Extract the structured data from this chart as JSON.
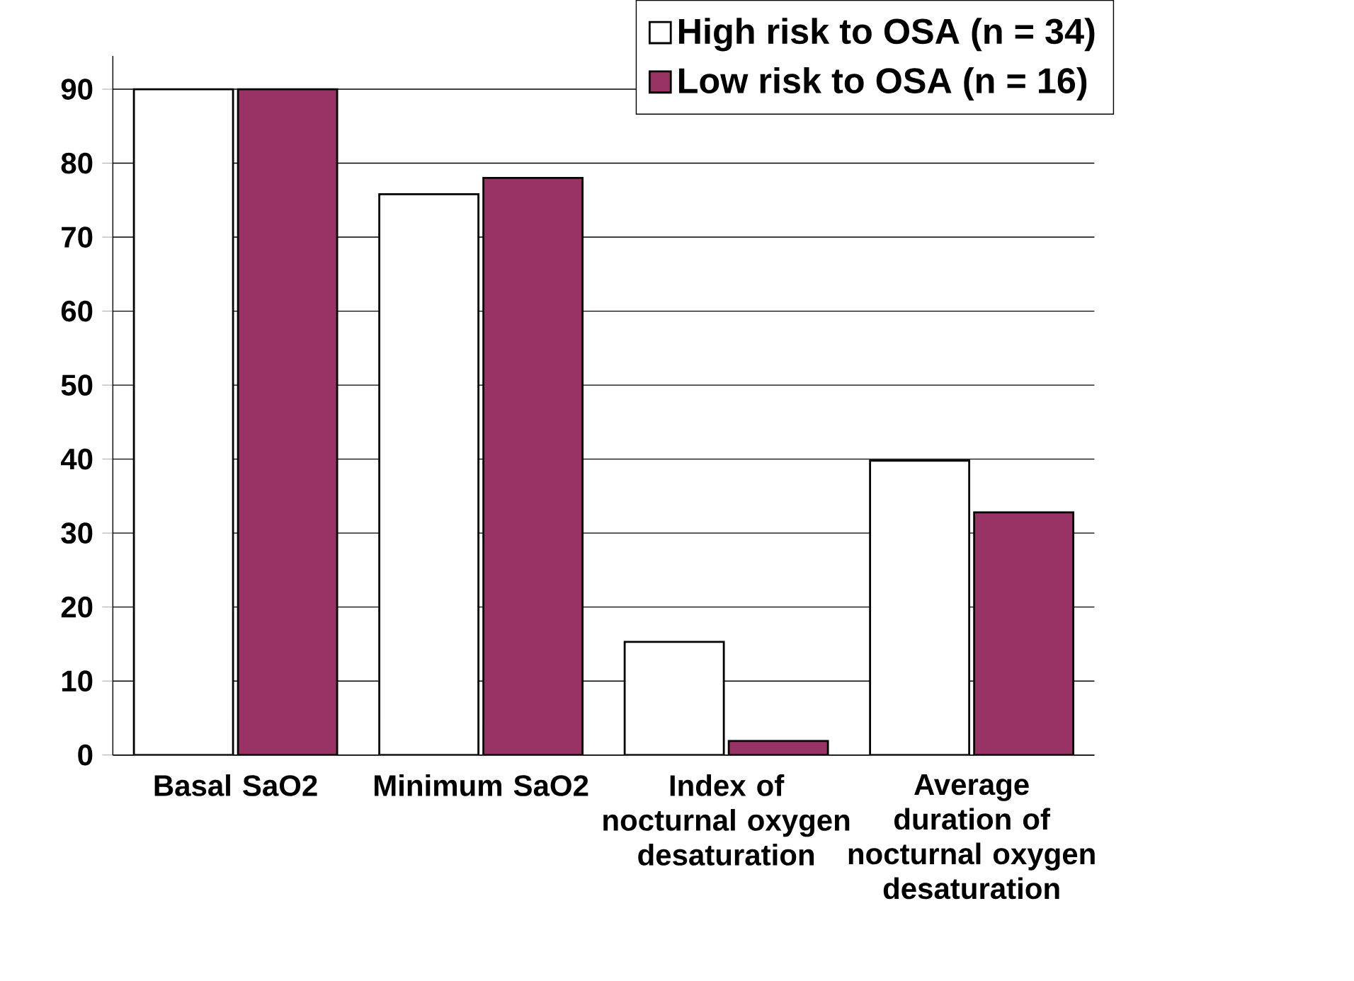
{
  "chart_data": {
    "type": "bar",
    "categories": [
      "Basal SaO2",
      "Minimum SaO2",
      "Index of nocturnal oxygen desaturation",
      "Average duration of nocturnal oxygen desaturation"
    ],
    "series": [
      {
        "name": "High risk to OSA (n = 34)",
        "color": "#ffffff",
        "values": [
          90,
          75.8,
          15.3,
          39.8
        ]
      },
      {
        "name": "Low risk to OSA (n = 16)",
        "color": "#993366",
        "values": [
          90,
          78,
          1.9,
          32.8
        ]
      }
    ],
    "ylim": [
      0,
      90
    ],
    "yticks": [
      0,
      10,
      20,
      30,
      40,
      50,
      60,
      70,
      80,
      90
    ],
    "grid": "y",
    "legend": "top right"
  }
}
